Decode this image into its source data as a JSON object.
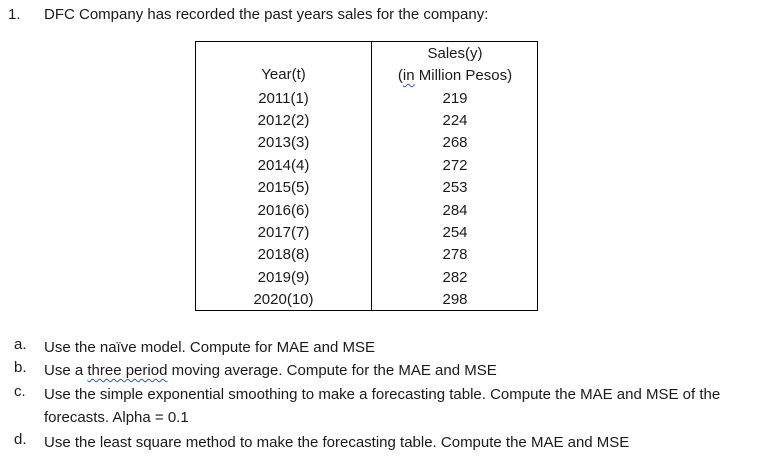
{
  "question": {
    "number": "1.",
    "text": "DFC Company has recorded the past years sales for the company:"
  },
  "table": {
    "year_header": "Year(t)",
    "sales_header_line1": "Sales(y)",
    "sales_header_line2_prefix": "(",
    "sales_header_line2_underlined": "in",
    "sales_header_line2_suffix": " Million Pesos)",
    "rows": [
      {
        "year": "2011(1)",
        "sales": "219"
      },
      {
        "year": "2012(2)",
        "sales": "224"
      },
      {
        "year": "2013(3)",
        "sales": "268"
      },
      {
        "year": "2014(4)",
        "sales": "272"
      },
      {
        "year": "2015(5)",
        "sales": "253"
      },
      {
        "year": "2016(6)",
        "sales": "284"
      },
      {
        "year": "2017(7)",
        "sales": "254"
      },
      {
        "year": "2018(8)",
        "sales": "278"
      },
      {
        "year": "2019(9)",
        "sales": "282"
      },
      {
        "year": "2020(10)",
        "sales": "298"
      }
    ]
  },
  "subquestions": [
    {
      "letter": "a.",
      "text": "Use the naïve model. Compute for MAE and MSE"
    },
    {
      "letter": "b.",
      "text_before": "Use a ",
      "text_underlined": "three period",
      "text_after": " moving average. Compute for the MAE and MSE"
    },
    {
      "letter": "c.",
      "text": "Use the simple exponential smoothing to make a forecasting table. Compute the MAE and MSE of the forecasts. Alpha = 0.1"
    },
    {
      "letter": "d.",
      "text": "Use the least square method to make the forecasting table. Compute the MAE and MSE"
    }
  ]
}
